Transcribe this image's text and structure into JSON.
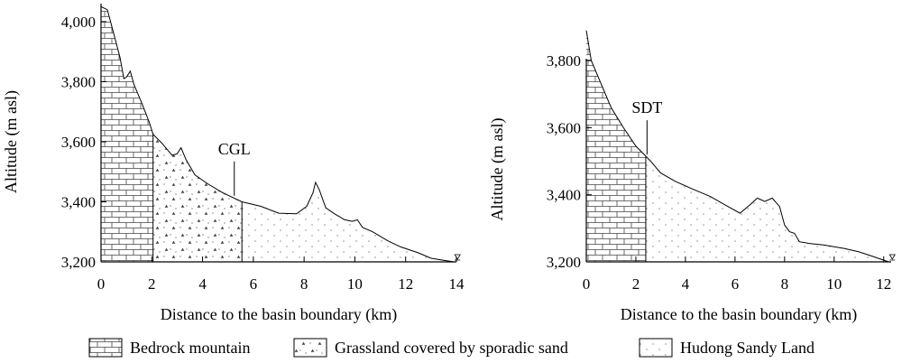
{
  "chart_data": [
    {
      "type": "area",
      "xlabel": "Distance to the basin boundary (km)",
      "ylabel": "Altitude (m asl)",
      "xlim": [
        0,
        14
      ],
      "ylim": [
        3200,
        4060
      ],
      "x_ticks": [
        0,
        2,
        4,
        6,
        8,
        10,
        12,
        14
      ],
      "y_ticks": [
        3200,
        3400,
        3600,
        3800,
        4000
      ],
      "x_tick_labels": [
        "0",
        "2",
        "4",
        "6",
        "8",
        "10",
        "12",
        "14"
      ],
      "y_tick_labels": [
        "3,200",
        "3,400",
        "3,600",
        "3,800",
        "4,000"
      ],
      "annotation": {
        "label": "CGL",
        "x": 5.25,
        "y": 3420
      },
      "boundaries": [
        2.05,
        5.55
      ],
      "profile": [
        [
          0,
          4050
        ],
        [
          0.25,
          4040
        ],
        [
          0.5,
          3960
        ],
        [
          0.75,
          3880
        ],
        [
          0.9,
          3810
        ],
        [
          1.0,
          3815
        ],
        [
          1.15,
          3835
        ],
        [
          1.3,
          3790
        ],
        [
          1.6,
          3730
        ],
        [
          1.9,
          3665
        ],
        [
          2.05,
          3625
        ],
        [
          2.4,
          3595
        ],
        [
          2.8,
          3555
        ],
        [
          3.0,
          3560
        ],
        [
          3.15,
          3580
        ],
        [
          3.35,
          3540
        ],
        [
          3.7,
          3490
        ],
        [
          4.2,
          3460
        ],
        [
          4.8,
          3430
        ],
        [
          5.55,
          3400
        ],
        [
          6.3,
          3385
        ],
        [
          7.0,
          3362
        ],
        [
          7.7,
          3360
        ],
        [
          8.1,
          3385
        ],
        [
          8.35,
          3430
        ],
        [
          8.45,
          3465
        ],
        [
          8.6,
          3440
        ],
        [
          8.85,
          3380
        ],
        [
          9.2,
          3360
        ],
        [
          9.6,
          3340
        ],
        [
          9.9,
          3335
        ],
        [
          10.1,
          3340
        ],
        [
          10.3,
          3315
        ],
        [
          10.7,
          3300
        ],
        [
          11.3,
          3270
        ],
        [
          11.8,
          3250
        ],
        [
          12.5,
          3230
        ],
        [
          13.0,
          3212
        ],
        [
          13.5,
          3205
        ],
        [
          13.9,
          3200
        ]
      ],
      "zones": [
        "Bedrock mountain",
        "Grassland covered by sporadic sand",
        "Hudong Sandy Land"
      ]
    },
    {
      "type": "area",
      "xlabel": "Distance to the basin boundary (km)",
      "ylabel": "Altitude (m asl)",
      "xlim": [
        0,
        12.3
      ],
      "ylim": [
        3200,
        3970
      ],
      "x_ticks": [
        0,
        2,
        4,
        6,
        8,
        10,
        12
      ],
      "y_ticks": [
        3200,
        3400,
        3600,
        3800
      ],
      "x_tick_labels": [
        "0",
        "2",
        "4",
        "6",
        "8",
        "10",
        "12"
      ],
      "y_tick_labels": [
        "3,200",
        "3,400",
        "3,600",
        "3,800"
      ],
      "annotation": {
        "label": "SDT",
        "x": 2.45,
        "y": 3520
      },
      "boundaries": [
        2.4
      ],
      "profile": [
        [
          0,
          3890
        ],
        [
          0.2,
          3800
        ],
        [
          0.6,
          3730
        ],
        [
          1.0,
          3660
        ],
        [
          1.5,
          3600
        ],
        [
          2.0,
          3545
        ],
        [
          2.4,
          3515
        ],
        [
          2.6,
          3500
        ],
        [
          3.0,
          3465
        ],
        [
          3.6,
          3440
        ],
        [
          4.2,
          3420
        ],
        [
          5.0,
          3395
        ],
        [
          5.6,
          3370
        ],
        [
          6.2,
          3345
        ],
        [
          6.6,
          3370
        ],
        [
          6.9,
          3390
        ],
        [
          7.2,
          3380
        ],
        [
          7.5,
          3390
        ],
        [
          7.8,
          3365
        ],
        [
          8.0,
          3310
        ],
        [
          8.2,
          3290
        ],
        [
          8.4,
          3285
        ],
        [
          8.6,
          3260
        ],
        [
          9.0,
          3255
        ],
        [
          9.6,
          3250
        ],
        [
          10.4,
          3240
        ],
        [
          11.0,
          3230
        ],
        [
          11.6,
          3215
        ],
        [
          12.0,
          3205
        ],
        [
          12.2,
          3200
        ]
      ],
      "zones": [
        "Bedrock mountain",
        "Hudong Sandy Land"
      ]
    }
  ],
  "legend": {
    "items": [
      {
        "label": "Bedrock mountain",
        "pattern": "brick"
      },
      {
        "label": "Grassland covered by sporadic sand",
        "pattern": "grass"
      },
      {
        "label": "Hudong Sandy Land",
        "pattern": "dots"
      }
    ]
  }
}
